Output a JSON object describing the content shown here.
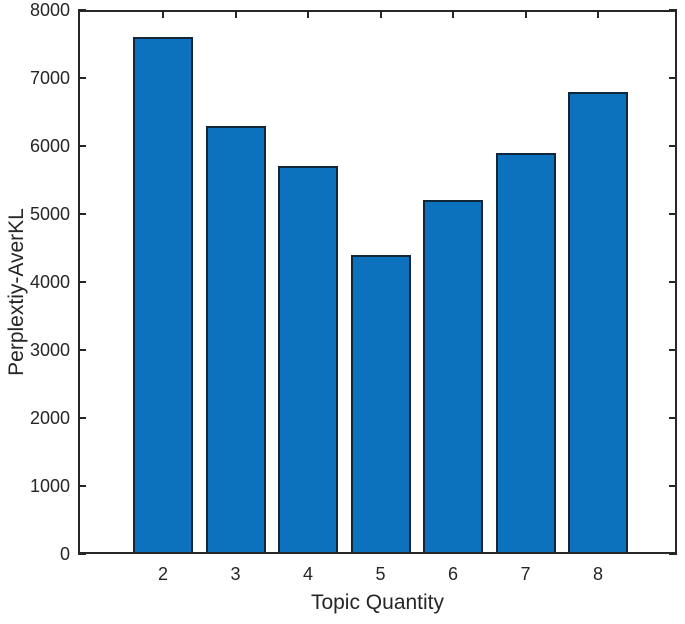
{
  "chart_data": {
    "type": "bar",
    "categories": [
      "2",
      "3",
      "4",
      "5",
      "6",
      "7",
      "8"
    ],
    "values": [
      7600,
      6300,
      5700,
      4400,
      5200,
      5900,
      6800
    ],
    "title": "",
    "xlabel": "Topic Quantity",
    "ylabel": "Perplextiy-AverKL",
    "ylim": [
      0,
      8000
    ],
    "yticks": [
      0,
      1000,
      2000,
      3000,
      4000,
      5000,
      6000,
      7000,
      8000
    ],
    "grid": false,
    "legend_position": "none",
    "tick_direction": "in",
    "box": true,
    "colors": {
      "bar_face": "#0c72bd",
      "bar_edge": "#12263a",
      "axis": "#262626",
      "text": "#262626",
      "background": "#ffffff"
    }
  }
}
